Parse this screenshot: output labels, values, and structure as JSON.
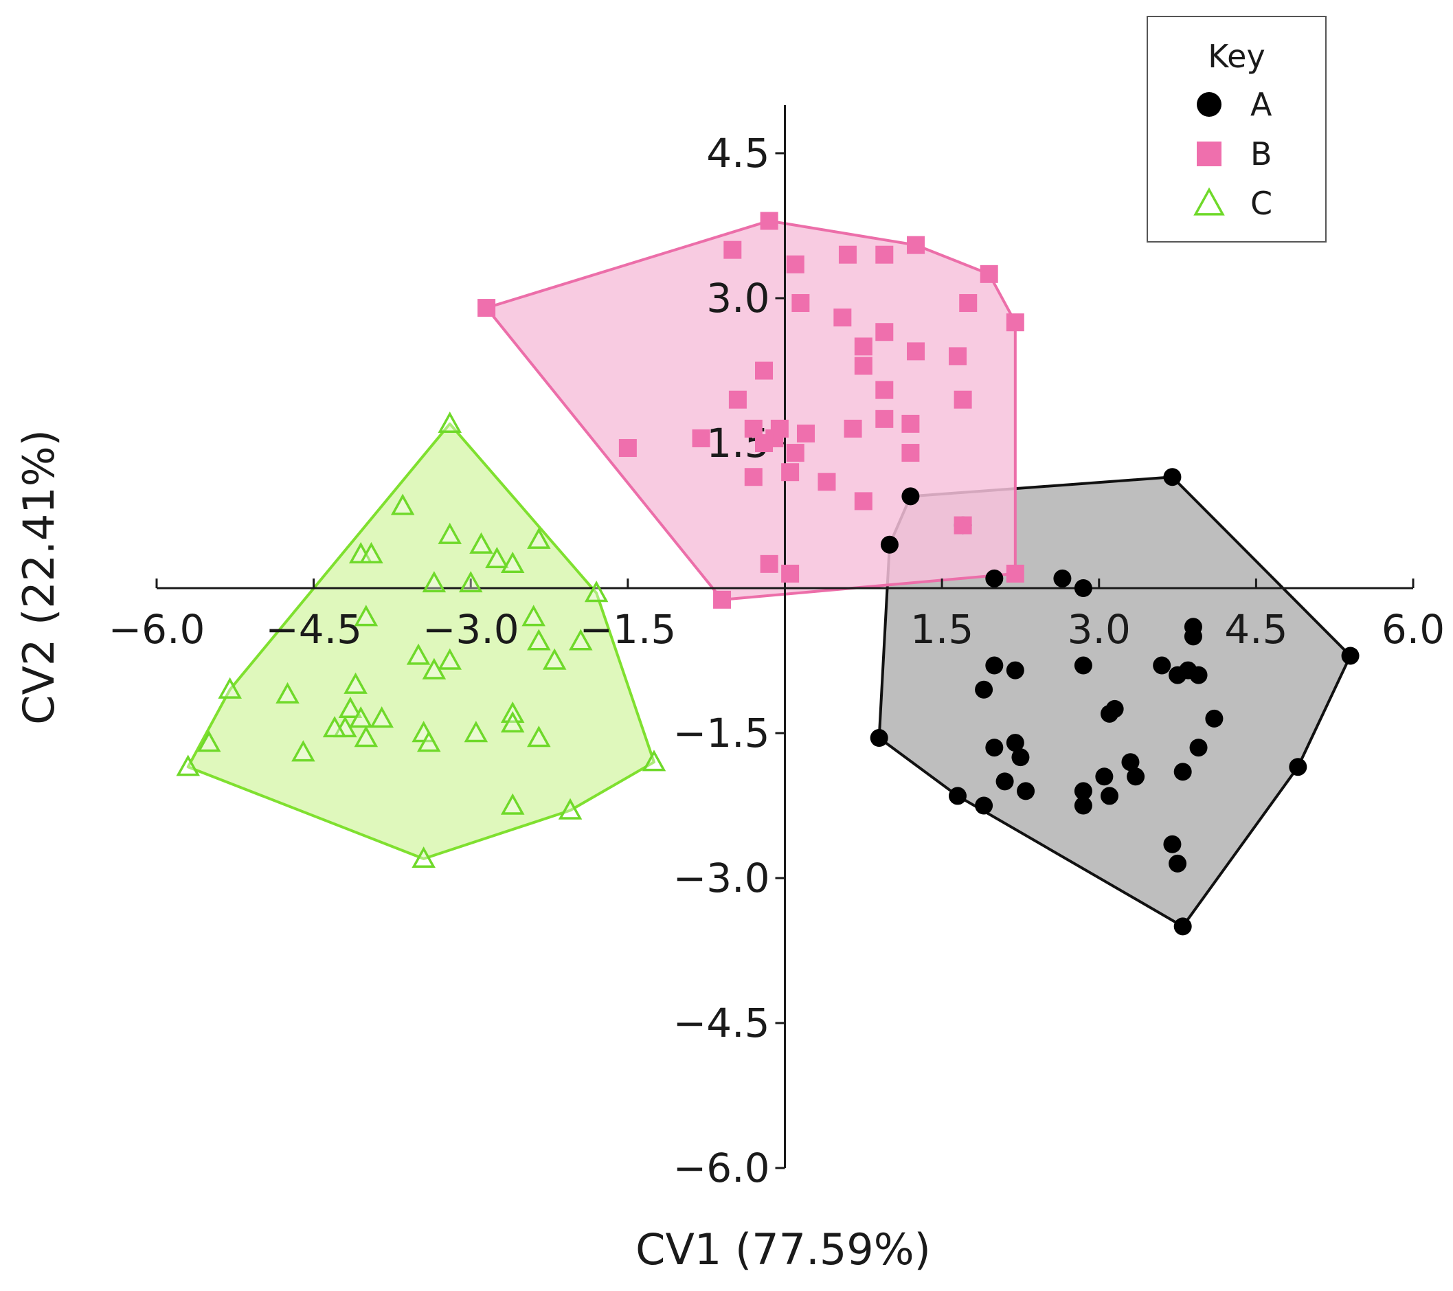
{
  "chart_data": {
    "type": "scatter",
    "xlabel": "CV1 (77.59%)",
    "ylabel": "CV2 (22.41%)",
    "xlim": [
      -6.0,
      6.0
    ],
    "ylim": [
      -6.0,
      4.5
    ],
    "x_ticks": [
      "−6.0",
      "−4.5",
      "−3.0",
      "−1.5",
      "1.5",
      "3.0",
      "4.5",
      "6.0"
    ],
    "y_ticks": [
      "4.5",
      "3.0",
      "1.5",
      "−1.5",
      "−3.0",
      "−4.5",
      "−6.0"
    ],
    "grid": false,
    "convex_hulls": true,
    "legend": {
      "title": "Key",
      "position": "top-right"
    },
    "series": [
      {
        "name": "A",
        "marker": "circle",
        "color": "#000000",
        "hull_fill": "#b3b3b3",
        "hull_stroke": "#111111",
        "points": [
          [
            1.2,
            0.95
          ],
          [
            3.7,
            1.15
          ],
          [
            1.0,
            0.45
          ],
          [
            1.7,
            0.65
          ],
          [
            2.0,
            0.1
          ],
          [
            2.65,
            0.1
          ],
          [
            2.85,
            0.0
          ],
          [
            0.9,
            -1.55
          ],
          [
            5.4,
            -0.7
          ],
          [
            4.9,
            -1.85
          ],
          [
            3.8,
            -3.5
          ],
          [
            1.65,
            -2.15
          ],
          [
            1.9,
            -2.25
          ],
          [
            3.9,
            -0.4
          ],
          [
            3.9,
            -0.5
          ],
          [
            3.6,
            -0.8
          ],
          [
            3.75,
            -0.9
          ],
          [
            3.85,
            -0.85
          ],
          [
            3.95,
            -0.9
          ],
          [
            4.1,
            -1.35
          ],
          [
            3.95,
            -1.65
          ],
          [
            3.8,
            -1.9
          ],
          [
            2.85,
            -0.8
          ],
          [
            2.0,
            -0.8
          ],
          [
            2.2,
            -0.85
          ],
          [
            1.9,
            -1.05
          ],
          [
            2.0,
            -1.65
          ],
          [
            2.2,
            -1.6
          ],
          [
            2.25,
            -1.75
          ],
          [
            2.1,
            -2.0
          ],
          [
            2.3,
            -2.1
          ],
          [
            3.1,
            -1.3
          ],
          [
            3.15,
            -1.25
          ],
          [
            3.3,
            -1.8
          ],
          [
            3.35,
            -1.95
          ],
          [
            3.05,
            -1.95
          ],
          [
            2.85,
            -2.1
          ],
          [
            3.1,
            -2.15
          ],
          [
            2.85,
            -2.25
          ],
          [
            3.7,
            -2.65
          ],
          [
            3.75,
            -2.85
          ]
        ]
      },
      {
        "name": "B",
        "marker": "square",
        "color": "#ef6fad",
        "hull_fill": "#f7c2dc",
        "hull_stroke": "#ec6ea9",
        "points": [
          [
            -2.85,
            2.9
          ],
          [
            -0.15,
            3.8
          ],
          [
            1.25,
            3.55
          ],
          [
            1.95,
            3.25
          ],
          [
            2.2,
            2.75
          ],
          [
            2.2,
            0.15
          ],
          [
            -0.6,
            -0.12
          ],
          [
            -0.5,
            3.5
          ],
          [
            0.1,
            3.35
          ],
          [
            0.6,
            3.45
          ],
          [
            0.95,
            3.45
          ],
          [
            0.15,
            2.95
          ],
          [
            0.55,
            2.8
          ],
          [
            1.75,
            2.95
          ],
          [
            0.95,
            2.65
          ],
          [
            0.75,
            2.5
          ],
          [
            1.25,
            2.45
          ],
          [
            1.65,
            2.4
          ],
          [
            0.75,
            2.3
          ],
          [
            0.95,
            2.05
          ],
          [
            -0.2,
            2.25
          ],
          [
            -0.45,
            1.95
          ],
          [
            1.7,
            1.95
          ],
          [
            0.95,
            1.75
          ],
          [
            1.2,
            1.7
          ],
          [
            -0.3,
            1.65
          ],
          [
            0.2,
            1.6
          ],
          [
            0.65,
            1.65
          ],
          [
            -0.05,
            1.65
          ],
          [
            -0.8,
            1.55
          ],
          [
            -0.1,
            1.55
          ],
          [
            -0.2,
            1.5
          ],
          [
            0.1,
            1.4
          ],
          [
            1.2,
            1.4
          ],
          [
            -1.5,
            1.45
          ],
          [
            -0.3,
            1.15
          ],
          [
            0.05,
            1.2
          ],
          [
            0.4,
            1.1
          ],
          [
            0.75,
            0.9
          ],
          [
            1.7,
            0.65
          ],
          [
            -0.15,
            0.25
          ],
          [
            0.05,
            0.15
          ]
        ]
      },
      {
        "name": "C",
        "marker": "triangle",
        "color": "#6fd92a",
        "hull_fill": "#d9f7b0",
        "hull_stroke": "#7fe02f",
        "points": [
          [
            -3.2,
            1.7
          ],
          [
            -2.35,
            0.5
          ],
          [
            -1.8,
            -0.05
          ],
          [
            -1.25,
            -1.8
          ],
          [
            -2.05,
            -2.3
          ],
          [
            -3.45,
            -2.8
          ],
          [
            -5.7,
            -1.85
          ],
          [
            -3.65,
            0.85
          ],
          [
            -3.2,
            0.55
          ],
          [
            -2.9,
            0.45
          ],
          [
            -2.75,
            0.3
          ],
          [
            -2.6,
            0.25
          ],
          [
            -4.05,
            0.35
          ],
          [
            -3.95,
            0.35
          ],
          [
            -3.35,
            0.05
          ],
          [
            -3.0,
            0.05
          ],
          [
            -4.0,
            -0.3
          ],
          [
            -2.4,
            -0.3
          ],
          [
            -2.35,
            -0.55
          ],
          [
            -1.95,
            -0.55
          ],
          [
            -3.5,
            -0.7
          ],
          [
            -3.35,
            -0.85
          ],
          [
            -3.2,
            -0.75
          ],
          [
            -2.2,
            -0.75
          ],
          [
            -5.3,
            -1.05
          ],
          [
            -4.75,
            -1.1
          ],
          [
            -4.1,
            -1.0
          ],
          [
            -4.15,
            -1.25
          ],
          [
            -4.05,
            -1.35
          ],
          [
            -3.85,
            -1.35
          ],
          [
            -4.2,
            -1.45
          ],
          [
            -4.3,
            -1.45
          ],
          [
            -4.0,
            -1.55
          ],
          [
            -3.45,
            -1.5
          ],
          [
            -3.4,
            -1.6
          ],
          [
            -2.95,
            -1.5
          ],
          [
            -2.6,
            -1.3
          ],
          [
            -2.6,
            -1.4
          ],
          [
            -2.35,
            -1.55
          ],
          [
            -5.5,
            -1.6
          ],
          [
            -4.6,
            -1.7
          ],
          [
            -2.6,
            -2.25
          ]
        ]
      }
    ]
  }
}
